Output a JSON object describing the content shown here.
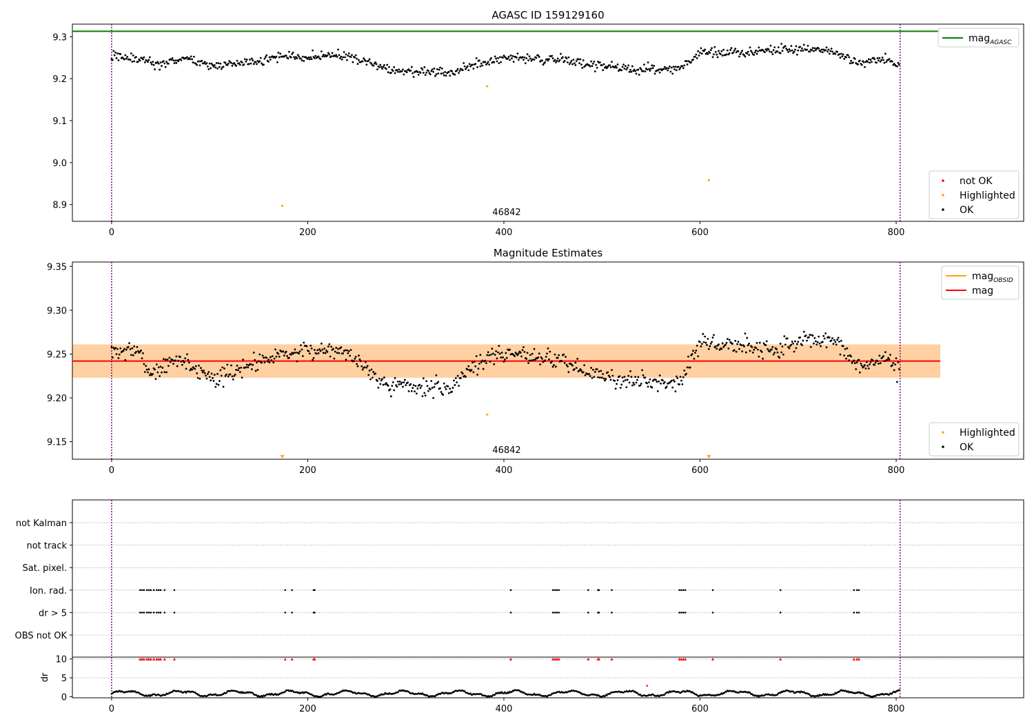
{
  "chart_data": [
    {
      "type": "scatter",
      "title": "AGASC ID 159129160",
      "xlim": [
        -40,
        930
      ],
      "ylim": [
        8.86,
        9.33
      ],
      "x_ticks": [
        0,
        200,
        400,
        600,
        800
      ],
      "y_ticks": [
        8.9,
        9.0,
        9.1,
        9.2,
        9.3
      ],
      "y_tick_labels": [
        "8.9",
        "9.0",
        "9.1",
        "9.2",
        "9.3"
      ],
      "vlines": [
        0,
        804
      ],
      "hline": {
        "name_main": "mag",
        "name_sub": "AGASC",
        "y": 9.313,
        "color": "#008000",
        "x_end": 845
      },
      "annotation": {
        "text": "46842",
        "x": 400
      },
      "series": [
        {
          "name": "not OK",
          "color": "#ff0000",
          "points": []
        },
        {
          "name": "Highlighted",
          "color": "#ffa500",
          "points": [
            [
              174,
              8.897
            ],
            [
              383,
              9.182
            ],
            [
              609,
              8.958
            ]
          ]
        },
        {
          "name": "OK",
          "color": "#000000",
          "trend": "top",
          "n": 804
        }
      ],
      "legends": [
        {
          "position": "top-right",
          "items": [
            {
              "kind": "line",
              "color": "#008000",
              "label": "mag",
              "sub": "AGASC"
            }
          ]
        },
        {
          "position": "bottom-right",
          "items": [
            {
              "kind": "dot",
              "color": "#ff0000",
              "label": "not OK"
            },
            {
              "kind": "dot",
              "color": "#ffa500",
              "label": "Highlighted"
            },
            {
              "kind": "dot",
              "color": "#000000",
              "label": "OK"
            }
          ]
        }
      ]
    },
    {
      "type": "scatter",
      "title": "Magnitude Estimates",
      "xlim": [
        -40,
        930
      ],
      "ylim": [
        9.13,
        9.355
      ],
      "x_ticks": [
        0,
        200,
        400,
        600,
        800
      ],
      "y_ticks": [
        9.15,
        9.2,
        9.25,
        9.3,
        9.35
      ],
      "y_tick_labels": [
        "9.15",
        "9.20",
        "9.25",
        "9.30",
        "9.35"
      ],
      "vlines": [
        0,
        804
      ],
      "bands": [
        {
          "color": "#ffc0cb",
          "opacity": 0.45,
          "y0": 9.223,
          "y1": 9.261,
          "x_start": -40,
          "x_end": 845
        },
        {
          "color": "#ffa500",
          "opacity": 0.3,
          "y0": 9.223,
          "y1": 9.261,
          "x_start": -40,
          "x_end": 845
        }
      ],
      "hlines": [
        {
          "name": "mag",
          "y": 9.242,
          "color": "#ff0000",
          "x_start": -40,
          "x_end": 845
        }
      ],
      "annotation": {
        "text": "46842",
        "x": 400
      },
      "series": [
        {
          "name": "Highlighted",
          "color": "#ffa500",
          "points": [
            [
              383,
              9.181
            ]
          ],
          "clipped_markers_x": [
            174,
            609
          ]
        },
        {
          "name": "OK",
          "color": "#000000",
          "trend": "middle",
          "n": 804
        }
      ],
      "legends": [
        {
          "position": "top-right",
          "items": [
            {
              "kind": "line",
              "color": "#ffa500",
              "label": "mag",
              "sub": "OBSID"
            },
            {
              "kind": "line",
              "color": "#ff0000",
              "label": "mag"
            }
          ]
        },
        {
          "position": "bottom-right",
          "items": [
            {
              "kind": "dot",
              "color": "#ffa500",
              "label": "Highlighted"
            },
            {
              "kind": "dot",
              "color": "#000000",
              "label": "OK"
            }
          ]
        }
      ]
    },
    {
      "type": "scatter",
      "xlim": [
        -40,
        930
      ],
      "categories": [
        "not Kalman",
        "not track",
        "Sat. pixel.",
        "Ion. rad.",
        "dr > 5",
        "OBS not OK"
      ],
      "flag_x": [
        29,
        31,
        33,
        36,
        38,
        40,
        43,
        46,
        48,
        50,
        54,
        64,
        177,
        184,
        206,
        207,
        407,
        450,
        452,
        454,
        456,
        486,
        496,
        497,
        510,
        579,
        581,
        583,
        585,
        613,
        682,
        757,
        760,
        762
      ],
      "flagged_rows": [
        "Ion. rad.",
        "dr > 5"
      ],
      "grid": true,
      "vlines": [
        0,
        804
      ]
    },
    {
      "type": "scatter",
      "xlim": [
        -40,
        930
      ],
      "ylim": [
        -0.3,
        10.5
      ],
      "ylabel": "dr",
      "x_ticks": [
        0,
        200,
        400,
        600,
        800
      ],
      "y_ticks": [
        0,
        5,
        10
      ],
      "y_tick_labels": [
        "0",
        "5",
        "10"
      ],
      "vlines": [
        0,
        804
      ],
      "grid": true,
      "series": [
        {
          "name": "dr",
          "color": "#000000",
          "n": 804,
          "range": [
            0,
            2.3
          ]
        },
        {
          "name": "dr > 10",
          "color": "#ff0000",
          "marker": "triangle",
          "y": 10,
          "x_ref": "flag_x"
        },
        {
          "name": "outlier",
          "color": "#ff0000",
          "points": [
            [
              546,
              2.9
            ]
          ]
        }
      ]
    }
  ]
}
